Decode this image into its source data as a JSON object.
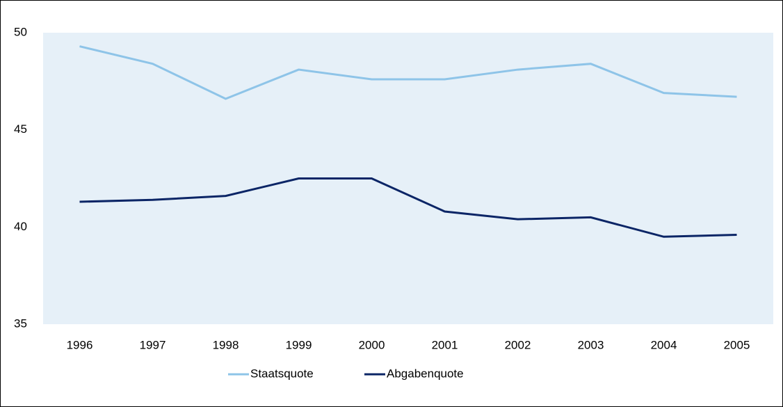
{
  "chart_data": {
    "type": "line",
    "categories": [
      "1996",
      "1997",
      "1998",
      "1999",
      "2000",
      "2001",
      "2002",
      "2003",
      "2004",
      "2005"
    ],
    "series": [
      {
        "name": "Staatsquote",
        "color": "#8ec4e8",
        "values": [
          49.3,
          48.4,
          46.6,
          48.1,
          47.6,
          47.6,
          48.1,
          48.4,
          46.9,
          46.7
        ]
      },
      {
        "name": "Abgabenquote",
        "color": "#0b2566",
        "values": [
          41.3,
          41.4,
          41.6,
          42.5,
          42.5,
          40.8,
          40.4,
          40.5,
          39.5,
          39.6
        ]
      }
    ],
    "ylim": [
      35,
      50
    ],
    "yticks": [
      35,
      40,
      45,
      50
    ],
    "grid": false,
    "legend": "bottom"
  }
}
